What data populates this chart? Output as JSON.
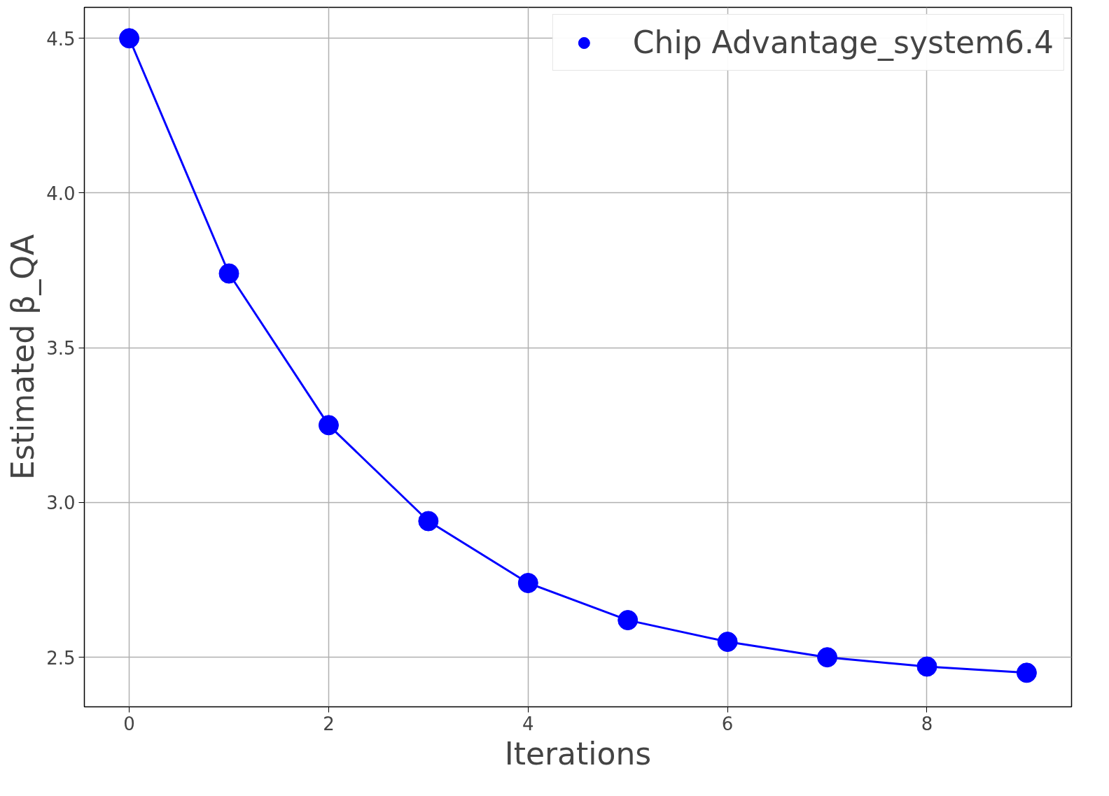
{
  "chart_data": {
    "type": "line",
    "xlabel": "Iterations",
    "ylabel": "Estimated β_QA",
    "x": [
      0,
      1,
      2,
      3,
      4,
      5,
      6,
      7,
      8,
      9
    ],
    "series": [
      {
        "name": "Chip Advantage_system6.4",
        "color": "#0000ff",
        "values": [
          4.5,
          3.74,
          3.25,
          2.94,
          2.74,
          2.62,
          2.55,
          2.5,
          2.47,
          2.45
        ]
      }
    ],
    "xlim": [
      -0.45,
      9.45
    ],
    "ylim": [
      2.34,
      4.6
    ],
    "xticks": [
      0,
      2,
      4,
      6,
      8
    ],
    "yticks": [
      {
        "value": 2.5,
        "label": "2.5"
      },
      {
        "value": 3.0,
        "label": "3.0"
      },
      {
        "value": 3.5,
        "label": "3.5"
      },
      {
        "value": 4.0,
        "label": "4.0"
      },
      {
        "value": 4.5,
        "label": "4.5"
      }
    ],
    "grid": true,
    "legend": "top right",
    "marker": "circle",
    "line_style": "solid"
  }
}
